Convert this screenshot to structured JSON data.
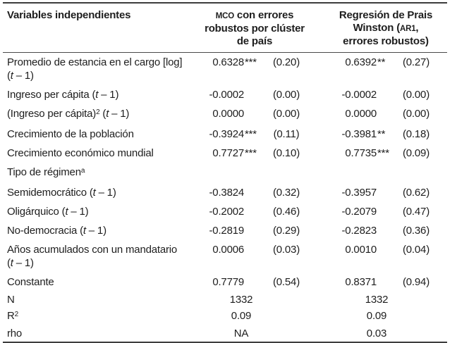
{
  "styles": {
    "background": "#ffffff",
    "text_color": "#1e1e1e",
    "rule_color": "#3d3d3d"
  },
  "table": {
    "header": {
      "variables": [
        {
          "t": "Variables independientes"
        }
      ],
      "model1": [
        {
          "t": "MCO",
          "sc": true
        },
        {
          "t": " con errores robustos por clúster de país"
        }
      ],
      "model2": [
        {
          "t": "Regresión de Prais Winston ("
        },
        {
          "t": "AR1",
          "sc": true
        },
        {
          "t": ", errores robustos)"
        }
      ]
    },
    "rows": [
      {
        "kind": "coef",
        "label": [
          [
            {
              "t": "Promedio de estancia en el cargo [log]"
            }
          ],
          [
            {
              "t": "("
            },
            {
              "t": "t",
              "i": true
            },
            {
              "t": " – 1)"
            }
          ]
        ],
        "m1": {
          "coef": "0.6328",
          "stars": "***",
          "se": "(0.20)"
        },
        "m2": {
          "coef": "0.6392",
          "stars": "**",
          "se": "(0.27)"
        }
      },
      {
        "kind": "coef",
        "label": [
          [
            {
              "t": "Ingreso per cápita ("
            },
            {
              "t": "t",
              "i": true
            },
            {
              "t": " – 1)"
            }
          ]
        ],
        "m1": {
          "coef": "-0.0002",
          "stars": "",
          "se": "(0.00)"
        },
        "m2": {
          "coef": "-0.0002",
          "stars": "",
          "se": "(0.00)"
        }
      },
      {
        "kind": "coef",
        "label": [
          [
            {
              "t": "(Ingreso per cápita)"
            },
            {
              "t": "2",
              "sup": true
            },
            {
              "t": " ("
            },
            {
              "t": "t",
              "i": true
            },
            {
              "t": " – 1)"
            }
          ]
        ],
        "m1": {
          "coef": "0.0000",
          "stars": "",
          "se": "(0.00)"
        },
        "m2": {
          "coef": "0.0000",
          "stars": "",
          "se": "(0.00)"
        }
      },
      {
        "kind": "coef",
        "label": [
          [
            {
              "t": "Crecimiento de la población"
            }
          ]
        ],
        "m1": {
          "coef": "-0.3924",
          "stars": "***",
          "se": "(0.11)"
        },
        "m2": {
          "coef": "-0.3981",
          "stars": "**",
          "se": "(0.18)"
        }
      },
      {
        "kind": "coef",
        "label": [
          [
            {
              "t": "Crecimiento económico mundial"
            }
          ]
        ],
        "m1": {
          "coef": "0.7727",
          "stars": "***",
          "se": "(0.10)"
        },
        "m2": {
          "coef": "0.7735",
          "stars": "***",
          "se": "(0.09)"
        }
      },
      {
        "kind": "section",
        "label": [
          [
            {
              "t": "Tipo de régimen"
            },
            {
              "t": "a",
              "sup": true
            }
          ]
        ]
      },
      {
        "kind": "coef",
        "label": [
          [
            {
              "t": "Semidemocrático ("
            },
            {
              "t": "t",
              "i": true
            },
            {
              "t": " – 1)"
            }
          ]
        ],
        "m1": {
          "coef": "-0.3824",
          "stars": "",
          "se": "(0.32)"
        },
        "m2": {
          "coef": "-0.3957",
          "stars": "",
          "se": "(0.62)"
        }
      },
      {
        "kind": "coef",
        "label": [
          [
            {
              "t": "Oligárquico ("
            },
            {
              "t": "t",
              "i": true
            },
            {
              "t": " – 1)"
            }
          ]
        ],
        "m1": {
          "coef": "-0.2002",
          "stars": "",
          "se": "(0.46)"
        },
        "m2": {
          "coef": "-0.2079",
          "stars": "",
          "se": "(0.47)"
        }
      },
      {
        "kind": "coef",
        "label": [
          [
            {
              "t": "No-democracia ("
            },
            {
              "t": "t",
              "i": true
            },
            {
              "t": " – 1)"
            }
          ]
        ],
        "m1": {
          "coef": "-0.2819",
          "stars": "",
          "se": "(0.29)"
        },
        "m2": {
          "coef": "-0.2823",
          "stars": "",
          "se": "(0.36)"
        }
      },
      {
        "kind": "coef",
        "label": [
          [
            {
              "t": "Años acumulados con un mandatario"
            }
          ],
          [
            {
              "t": "("
            },
            {
              "t": "t",
              "i": true
            },
            {
              "t": " – 1)"
            }
          ]
        ],
        "m1": {
          "coef": "0.0006",
          "stars": "",
          "se": "(0.03)"
        },
        "m2": {
          "coef": "0.0010",
          "stars": "",
          "se": "(0.04)"
        }
      },
      {
        "kind": "coef",
        "label": [
          [
            {
              "t": "Constante"
            }
          ]
        ],
        "m1": {
          "coef": "0.7779",
          "stars": "",
          "se": "(0.54)"
        },
        "m2": {
          "coef": "0.8371",
          "stars": "",
          "se": "(0.94)"
        }
      },
      {
        "kind": "stat",
        "label": [
          [
            {
              "t": "N"
            }
          ]
        ],
        "m1": {
          "value": "1332"
        },
        "m2": {
          "value": "1332"
        }
      },
      {
        "kind": "stat",
        "label": [
          [
            {
              "t": "R"
            },
            {
              "t": "2",
              "sup": true
            }
          ]
        ],
        "m1": {
          "value": "0.09"
        },
        "m2": {
          "value": "0.09"
        }
      },
      {
        "kind": "stat",
        "label": [
          [
            {
              "t": "rho"
            }
          ]
        ],
        "m1": {
          "value": "NA"
        },
        "m2": {
          "value": "0.03"
        }
      }
    ]
  }
}
